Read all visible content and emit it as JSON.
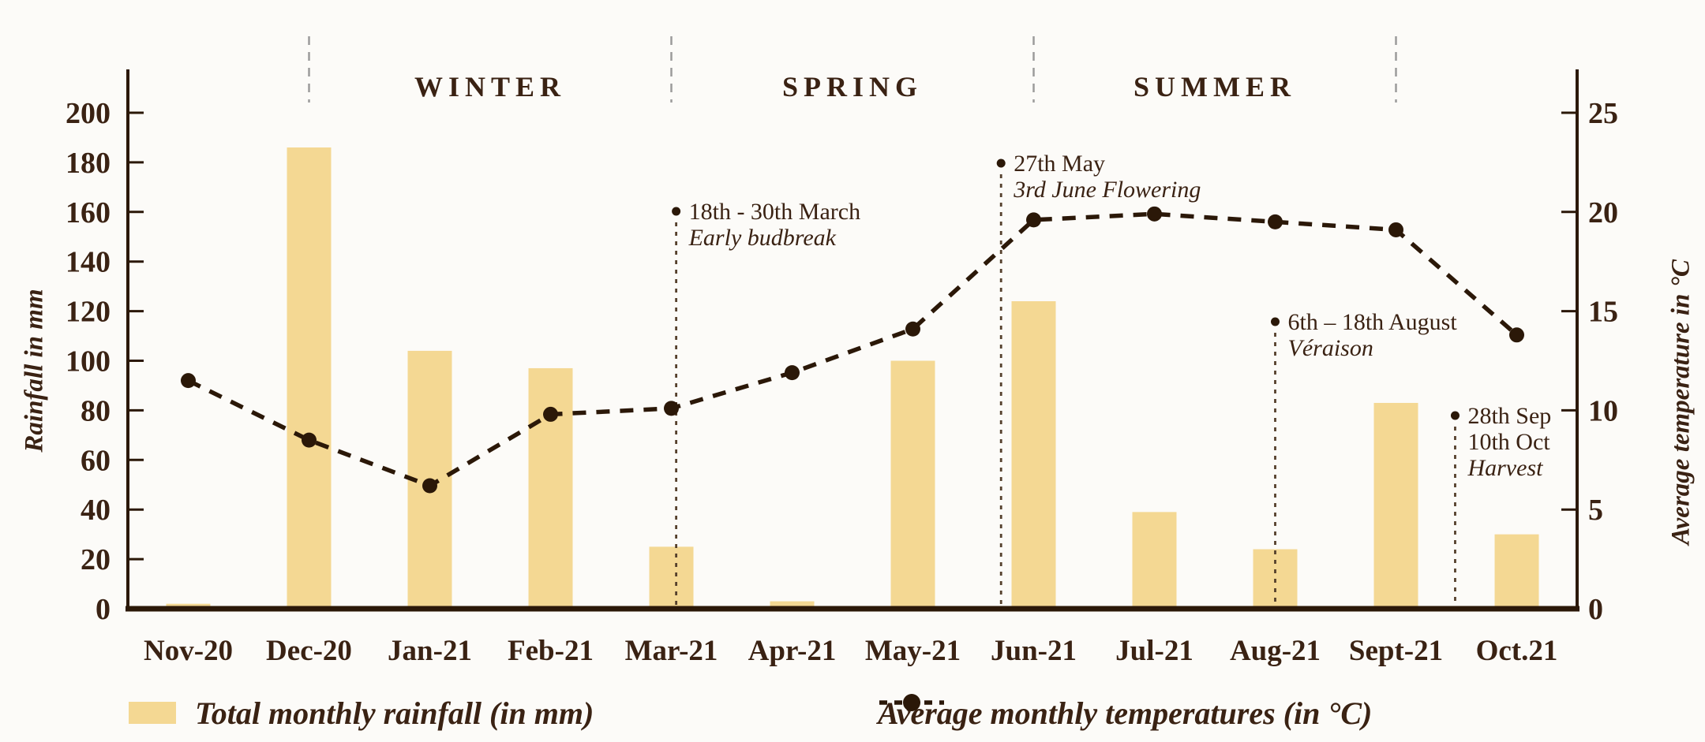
{
  "chart_data": {
    "type": "combo-bar-line",
    "categories": [
      "Nov-20",
      "Dec-20",
      "Jan-21",
      "Feb-21",
      "Mar-21",
      "Apr-21",
      "May-21",
      "Jun-21",
      "Jul-21",
      "Aug-21",
      "Sept-21",
      "Oct.21"
    ],
    "series": [
      {
        "name": "Total monthly rainfall (in mm)",
        "type": "bar",
        "axis": "left",
        "values": [
          2,
          186,
          104,
          97,
          25,
          3,
          100,
          124,
          39,
          24,
          83,
          30
        ]
      },
      {
        "name": "Average monthly temperatures (in °C)",
        "type": "line",
        "axis": "right",
        "values": [
          11.5,
          8.5,
          6.2,
          9.8,
          10.1,
          11.9,
          14.1,
          19.6,
          19.9,
          19.5,
          19.1,
          13.8
        ]
      }
    ],
    "left_axis": {
      "label": "Rainfall in mm",
      "min": 0,
      "max": 200,
      "tick_step": 20
    },
    "right_axis": {
      "label": "Average temperature in °C",
      "min": 0,
      "max": 25,
      "tick_step": 5
    },
    "grid": false,
    "legend_position": "bottom",
    "seasons": [
      {
        "label": "WINTER",
        "from_month": 1,
        "to_month": 4
      },
      {
        "label": "SPRING",
        "from_month": 4,
        "to_month": 7
      },
      {
        "label": "SUMMER",
        "from_month": 7,
        "to_month": 10
      }
    ],
    "separators_at_months": [
      1,
      4,
      7,
      10
    ],
    "annotations": [
      {
        "month": 4.04,
        "top_y": 268,
        "lines": [
          {
            "text": "18th - 30th  March",
            "italic": false
          },
          {
            "text": "Early budbreak",
            "italic": true
          }
        ]
      },
      {
        "month": 6.73,
        "top_y": 207,
        "lines": [
          {
            "text": "27th May",
            "italic": false
          },
          {
            "text": "3rd June Flowering",
            "italic": true
          }
        ]
      },
      {
        "month": 9.0,
        "top_y": 408,
        "lines": [
          {
            "text": "6th – 18th August",
            "italic": false
          },
          {
            "text": "Véraison",
            "italic": true
          }
        ]
      },
      {
        "month": 10.49,
        "top_y": 527,
        "lines": [
          {
            "text": "28th Sep",
            "italic": false
          },
          {
            "text": "10th Oct",
            "italic": false
          },
          {
            "text": "Harvest",
            "italic": true
          }
        ]
      }
    ]
  },
  "legend": {
    "rainfall_label": "Total monthly rainfall (in mm)",
    "temperature_label": "Average monthly temperatures (in °C)"
  },
  "colors": {
    "background": "#FCFBF8",
    "bar": "#F4D893",
    "text": "#3A2213",
    "stroke": "#2B1808",
    "separator": "#9B9B9B",
    "annotation_line": "#55402C"
  }
}
